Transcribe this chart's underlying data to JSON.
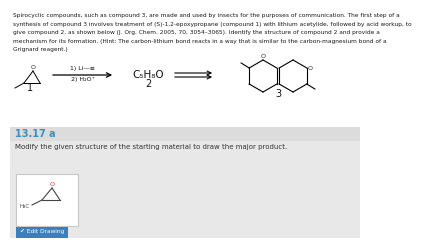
{
  "bg_color": "#ffffff",
  "header_text_lines": [
    "Spirocyclic compounds, such as compound 3, are made and used by insects for the purposes of communication. The first step of a",
    "synthesis of compound 3 involves treatment of (S)-1,2-epoxypropane (compound 1) with lithium acetylide, followed by acid workup, to",
    "give compound 2, as shown below (J. Org. Chem. 2005, 70, 3054–3065). Identify the structure of compound 2 and provide a",
    "mechanism for its formation. (Hint: The carbon-lithium bond reacts in a way that is similar to the carbon-magnesium bond of a",
    "Grignard reagent.)"
  ],
  "section_label": "13.17 a",
  "section_label_color": "#3a8fc0",
  "instruction_text": "Modify the given structure of the starting material to draw the major product.",
  "compound1_label": "1",
  "compound2_label": "2",
  "compound3_label": "3",
  "reagent_line1": "1) Li—≡",
  "reagent_line2": "2) H₂O⁺",
  "formula_text": "C₅H₈O",
  "edit_button_text": "✔ Edit Drawing",
  "edit_button_color": "#3a7fc0",
  "gray_section_color": "#e8e8e8",
  "divider_color": "#d0d0d0",
  "box_bg": "#ffffff",
  "box_border": "#c8c8c8"
}
